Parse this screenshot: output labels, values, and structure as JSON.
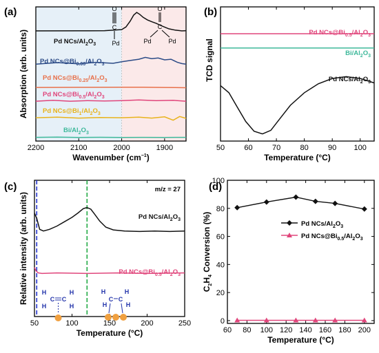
{
  "colors": {
    "black": "#111111",
    "navy": "#2b4a86",
    "orange": "#e8704a",
    "pink": "#e0457b",
    "yellow": "#e8b21a",
    "teal": "#3cb89a",
    "blue_band": "#e6f0f8",
    "pink_band": "#fbe9e9",
    "vline_blue": "#2233cc",
    "vline_green": "#22aa44",
    "mol_blue": "#2233aa",
    "atom": "#f0a040"
  },
  "chart_data": [
    {
      "id": "a",
      "type": "line",
      "panel_label": "(a)",
      "xlabel": "Wavenumber (cm",
      "xlabel_sup": "−1",
      "xlabel_end": ")",
      "ylabel": "Absorption (arb. units)",
      "xlim": [
        2200,
        1850
      ],
      "x_ticks": [
        2200,
        2100,
        2000,
        1900
      ],
      "x_tick_labels": [
        "2200",
        "2100",
        "2000",
        "1900"
      ],
      "bands": [
        {
          "from": 2200,
          "to": 2000,
          "color": "blue_band"
        },
        {
          "from": 2000,
          "to": 1850,
          "color": "pink_band"
        }
      ],
      "annotations": [
        {
          "text": "C",
          "text2": "Pd",
          "kind": "linear"
        },
        {
          "text": "C",
          "text2": "Pd",
          "text3": "Pd",
          "kind": "bridge"
        }
      ],
      "series": [
        {
          "name": "Pd NCs/Al",
          "sub": "2",
          "name2": "O",
          "sub2": "3",
          "color": "black",
          "x": [
            2200,
            2100,
            2040,
            2000,
            1990,
            1980,
            1972,
            1965,
            1958,
            1950,
            1940,
            1930,
            1920,
            1905,
            1890,
            1875,
            1860,
            1850
          ],
          "y": [
            0.95,
            0.96,
            1.0,
            1.3,
            2.0,
            3.6,
            5.2,
            5.9,
            5.4,
            4.6,
            3.9,
            3.4,
            3.0,
            2.2,
            1.5,
            1.15,
            0.95,
            1.0
          ]
        },
        {
          "name": "Pd NCs@Bi",
          "subname": "0.06",
          "name2": "/Al",
          "sub": "2",
          "name3": "O",
          "sub2": "3",
          "color": "navy",
          "x": [
            2200,
            2150,
            2100,
            2060,
            2020,
            2000,
            1980,
            1960,
            1945,
            1930,
            1915,
            1900,
            1885,
            1870,
            1860,
            1850
          ],
          "y": [
            0.3,
            0.55,
            0.35,
            0.6,
            0.45,
            0.7,
            0.9,
            1.1,
            1.4,
            1.2,
            1.3,
            1.0,
            1.1,
            0.6,
            0.4,
            0.3
          ]
        },
        {
          "name": "Pd NCs@Bi",
          "subname": "0.25",
          "name2": "/Al",
          "sub": "2",
          "name3": "O",
          "sub2": "3",
          "color": "orange",
          "x": [
            2200,
            2100,
            2000,
            1950,
            1900,
            1850
          ],
          "y": [
            0.1,
            0.12,
            0.15,
            0.14,
            0.1,
            0.05
          ]
        },
        {
          "name": "Pd NCs@Bi",
          "subname": "0.5",
          "name2": "/Al",
          "sub": "2",
          "name3": "O",
          "sub2": "3",
          "color": "pink",
          "x": [
            2200,
            2160,
            2120,
            2080,
            2040,
            2000,
            1960,
            1920,
            1880,
            1850
          ],
          "y": [
            0.1,
            0.25,
            0.1,
            0.2,
            0.15,
            0.2,
            0.3,
            0.2,
            0.25,
            0.1
          ]
        },
        {
          "name": "Pd NCs@Bi",
          "subname": "1",
          "name2": "/Al",
          "sub": "2",
          "name3": "O",
          "sub2": "3",
          "color": "yellow",
          "x": [
            2200,
            2150,
            2100,
            2050,
            2000,
            1960,
            1930,
            1900,
            1880,
            1865,
            1850
          ],
          "y": [
            0.1,
            0.2,
            0.05,
            0.15,
            0.1,
            0.2,
            0.05,
            0.25,
            -0.3,
            0.3,
            0.0
          ]
        },
        {
          "name": "Bi/Al",
          "sub": "2",
          "name2": "O",
          "sub2": "3",
          "color": "teal",
          "x": [
            2200,
            2150,
            2100,
            2050,
            2000,
            1950,
            1900,
            1850
          ],
          "y": [
            0.05,
            0.08,
            0.03,
            0.06,
            0.02,
            0.04,
            0.03,
            0.05
          ]
        }
      ]
    },
    {
      "id": "b",
      "type": "line",
      "panel_label": "(b)",
      "xlabel": "Temperature (°C)",
      "ylabel": "TCD signal",
      "xlim": [
        50,
        105
      ],
      "x_ticks": [
        50,
        60,
        70,
        80,
        90,
        100
      ],
      "x_tick_labels": [
        "50",
        "60",
        "70",
        "80",
        "90",
        "100"
      ],
      "series": [
        {
          "name": "Pd NCs@Bi",
          "subname": "0.5",
          "name2": "/Al",
          "sub": "2",
          "name3": "O",
          "sub2": "3",
          "color": "pink",
          "x": [
            50,
            105
          ],
          "y": [
            1.0,
            1.0
          ]
        },
        {
          "name": "Bi/Al",
          "sub": "2",
          "name2": "O",
          "sub2": "3",
          "color": "teal",
          "x": [
            50,
            105
          ],
          "y": [
            0.84,
            0.84
          ]
        },
        {
          "name": "Pd NCs/Al",
          "sub": "2",
          "name2": "O",
          "sub2": "3",
          "color": "black",
          "x": [
            50,
            53,
            56,
            59,
            62,
            65,
            68,
            71,
            75,
            80,
            85,
            90,
            95,
            100,
            105
          ],
          "y": [
            0.42,
            0.34,
            0.18,
            0.02,
            -0.09,
            -0.12,
            -0.08,
            0.04,
            0.2,
            0.34,
            0.44,
            0.5,
            0.52,
            0.5,
            0.45
          ]
        }
      ]
    },
    {
      "id": "c",
      "type": "line",
      "panel_label": "(c)",
      "xlabel": "Temperature (°C)",
      "ylabel": "Relative intensity (arb. units)",
      "note": "m/z = 27",
      "xlim": [
        50,
        250
      ],
      "x_ticks": [
        50,
        100,
        150,
        200,
        250
      ],
      "x_tick_labels": [
        "50",
        "100",
        "150",
        "200",
        "250"
      ],
      "vlines": [
        {
          "x": 53,
          "color": "vline_blue"
        },
        {
          "x": 120,
          "color": "vline_green"
        }
      ],
      "series": [
        {
          "name": "Pd NCs/Al",
          "sub": "2",
          "name2": "O",
          "sub2": "3",
          "color": "black",
          "x": [
            50,
            53,
            57,
            62,
            70,
            80,
            90,
            100,
            108,
            115,
            120,
            125,
            130,
            137,
            145,
            155,
            170,
            190,
            210,
            230,
            250
          ],
          "y": [
            1.0,
            0.9,
            0.7,
            0.67,
            0.7,
            0.76,
            0.84,
            0.92,
            1.0,
            1.08,
            1.1,
            1.07,
            0.98,
            0.85,
            0.74,
            0.69,
            0.67,
            0.66,
            0.67,
            0.66,
            0.67
          ]
        },
        {
          "name": "Pd NCs@Bi",
          "subname": "0.5",
          "name2": "/Al",
          "sub": "2",
          "name3": "O",
          "sub2": "3",
          "color": "pink",
          "x": [
            50,
            52,
            55,
            60,
            80,
            120,
            160,
            200,
            250
          ],
          "y": [
            0.0,
            -0.06,
            -0.1,
            -0.11,
            -0.1,
            -0.11,
            -0.1,
            -0.11,
            -0.1
          ]
        }
      ]
    },
    {
      "id": "d",
      "type": "line",
      "panel_label": "(d)",
      "xlabel": "Temperature (°C)",
      "ylabel_prefix": "C",
      "ylabel_sub": "2",
      "ylabel_mid": "H",
      "ylabel_sub2": "4",
      "ylabel_end": " Conversion (%)",
      "xlim": [
        60,
        210
      ],
      "ylim": [
        -2,
        100
      ],
      "x_ticks": [
        60,
        80,
        100,
        120,
        140,
        160,
        180,
        200
      ],
      "x_tick_labels": [
        "60",
        "80",
        "100",
        "120",
        "140",
        "160",
        "180",
        "200"
      ],
      "y_ticks": [
        0,
        20,
        40,
        60,
        80,
        100
      ],
      "y_tick_labels": [
        "0",
        "20",
        "40",
        "60",
        "80",
        "100"
      ],
      "legend_position": "middle-right",
      "series": [
        {
          "name": "Pd NCs/Al",
          "sub": "2",
          "name2": "O",
          "sub2": "3",
          "color": "black",
          "marker": "diamond",
          "x": [
            70,
            100,
            130,
            150,
            170,
            200
          ],
          "y": [
            80.5,
            84.5,
            88,
            85,
            83.5,
            79.5
          ]
        },
        {
          "name": "Pd NCs@Bi",
          "subname": "0.5",
          "name2": "/Al",
          "sub": "2",
          "name3": "O",
          "sub2": "3",
          "color": "pink",
          "marker": "triangle",
          "x": [
            70,
            100,
            130,
            150,
            170,
            200
          ],
          "y": [
            0.2,
            0.2,
            0.2,
            0.2,
            0.2,
            0.2
          ]
        }
      ]
    }
  ],
  "molecules": [
    {
      "label": "H",
      "bond": "C",
      "note": "H"
    }
  ]
}
